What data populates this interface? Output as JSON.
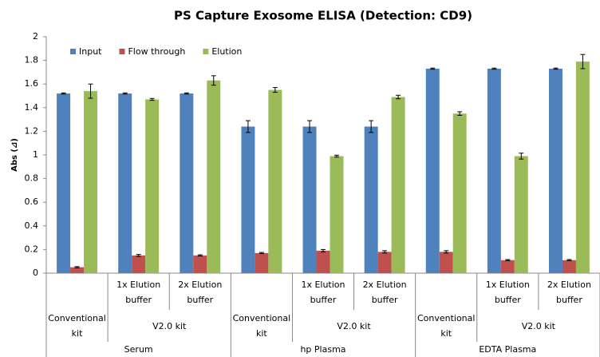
{
  "chart_data": {
    "type": "bar",
    "title": "PS Capture Exosome ELISA (Detection: CD9)",
    "y_label": "Abs (⊿)",
    "categories": [
      null,
      "1x Elution buffer",
      "2x Elution buffer",
      null,
      "1x Elution buffer",
      "2x Elution buffer",
      null,
      "1x Elution buffer",
      "2x Elution buffer"
    ],
    "groups": [
      {
        "name": "Serum",
        "kits": [
          {
            "name": "Conventional kit",
            "count": 1
          },
          {
            "name": "V2.0 kit",
            "count": 2
          }
        ]
      },
      {
        "name": "hp Plasma",
        "kits": [
          {
            "name": "Conventional kit",
            "count": 1
          },
          {
            "name": "V2.0 kit",
            "count": 2
          }
        ]
      },
      {
        "name": "EDTA Plasma",
        "kits": [
          {
            "name": "Conventional kit",
            "count": 1
          },
          {
            "name": "V2.0 kit",
            "count": 2
          }
        ]
      }
    ],
    "series": [
      {
        "name": "Input",
        "color": "#4f81bd",
        "values": [
          1.52,
          1.52,
          1.52,
          1.24,
          1.24,
          1.24,
          1.73,
          1.73,
          1.73
        ],
        "errors": [
          0.005,
          0.005,
          0.005,
          0.05,
          0.05,
          0.05,
          0.005,
          0.005,
          0.005
        ]
      },
      {
        "name": "Flow through",
        "color": "#c0504d",
        "values": [
          0.05,
          0.15,
          0.15,
          0.17,
          0.19,
          0.18,
          0.18,
          0.11,
          0.11
        ],
        "errors": [
          0.005,
          0.008,
          0.005,
          0.005,
          0.01,
          0.01,
          0.01,
          0.005,
          0.005
        ]
      },
      {
        "name": "Elution",
        "color": "#9bbb59",
        "values": [
          1.54,
          1.47,
          1.63,
          1.55,
          0.99,
          1.49,
          1.35,
          0.99,
          1.79
        ],
        "errors": [
          0.06,
          0.008,
          0.04,
          0.02,
          0.008,
          0.015,
          0.015,
          0.025,
          0.06
        ]
      }
    ],
    "ylim": [
      0,
      2
    ],
    "yticks": [
      0,
      0.2,
      0.4,
      0.6,
      0.8,
      1,
      1.2,
      1.4,
      1.6,
      1.8,
      2
    ],
    "grid": false,
    "legend": "top-left"
  }
}
